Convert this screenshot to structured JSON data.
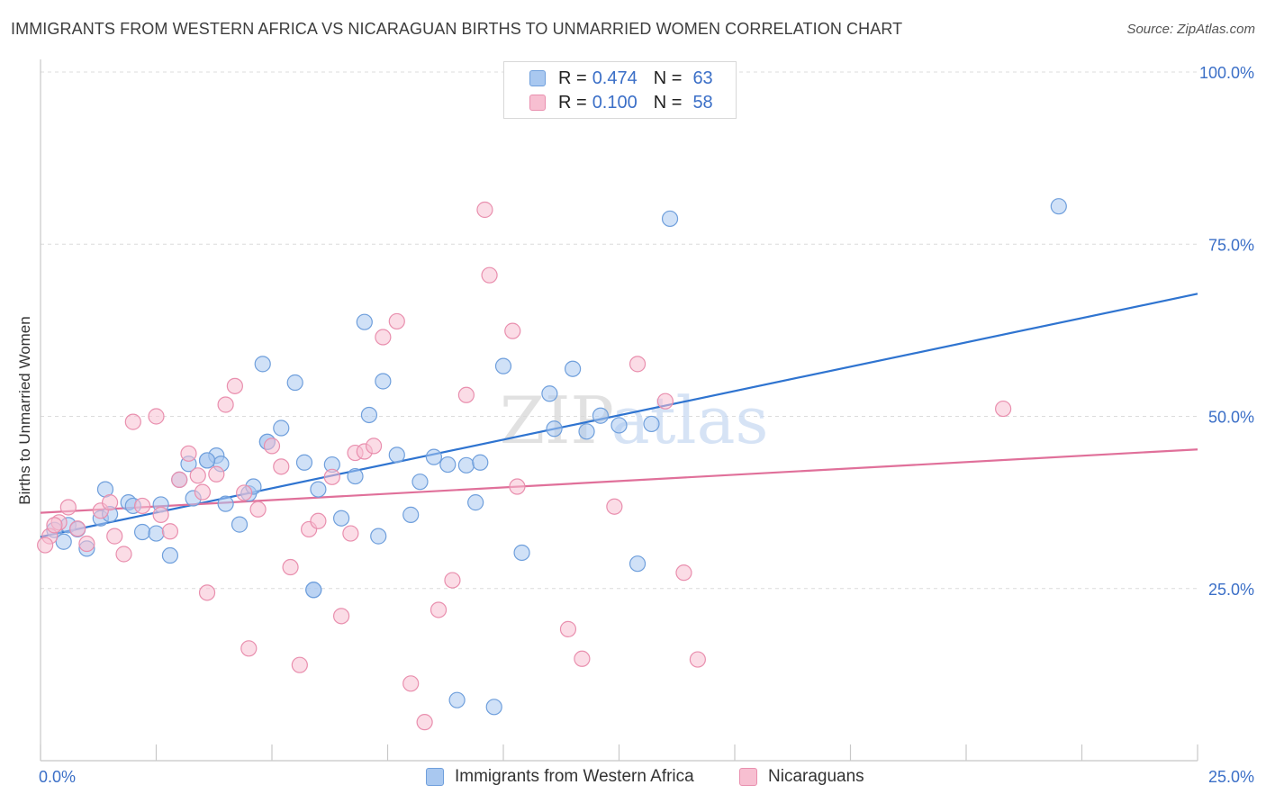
{
  "title": "IMMIGRANTS FROM WESTERN AFRICA VS NICARAGUAN BIRTHS TO UNMARRIED WOMEN CORRELATION CHART",
  "source": "Source: ZipAtlas.com",
  "watermark": "ZIPatlas",
  "legend": {
    "rows": [
      {
        "r_label": "R =",
        "r_value": "0.474",
        "n_label": "N =",
        "n_value": "63"
      },
      {
        "r_label": "R =",
        "r_value": "0.100",
        "n_label": "N =",
        "n_value": "58"
      }
    ]
  },
  "colors": {
    "blue_fill": "#a9c8f0",
    "blue_stroke": "#6f9fdc",
    "blue_line": "#2f74d0",
    "pink_fill": "#f7bfd1",
    "pink_stroke": "#e98fae",
    "pink_line": "#e0709a",
    "axis_text": "#3b6fc7",
    "grid": "#dcdcdc"
  },
  "chart_data": {
    "type": "scatter",
    "xlabel": "",
    "ylabel": "Births to Unmarried Women",
    "x_ticks": [
      "0.0%",
      "25.0%"
    ],
    "y_ticks": [
      "25.0%",
      "50.0%",
      "75.0%",
      "100.0%"
    ],
    "xlim": [
      0,
      25
    ],
    "ylim": [
      0,
      100
    ],
    "series": [
      {
        "name": "Immigrants from Western Africa",
        "color": "blue",
        "trend": {
          "x0": 0,
          "y0": 32.5,
          "x1": 25,
          "y1": 67.8
        },
        "points": [
          [
            0.3,
            33.5
          ],
          [
            0.5,
            31.8
          ],
          [
            0.6,
            34.2
          ],
          [
            0.8,
            33.6
          ],
          [
            1.0,
            30.8
          ],
          [
            1.3,
            35.2
          ],
          [
            1.5,
            35.8
          ],
          [
            1.4,
            39.4
          ],
          [
            1.9,
            37.5
          ],
          [
            2.0,
            37.0
          ],
          [
            2.2,
            33.2
          ],
          [
            2.5,
            33.0
          ],
          [
            2.6,
            37.2
          ],
          [
            2.8,
            29.8
          ],
          [
            3.0,
            40.8
          ],
          [
            3.2,
            43.1
          ],
          [
            3.3,
            38.1
          ],
          [
            3.6,
            43.6
          ],
          [
            3.8,
            44.3
          ],
          [
            3.9,
            43.1
          ],
          [
            4.0,
            37.3
          ],
          [
            4.3,
            34.3
          ],
          [
            4.5,
            38.8
          ],
          [
            4.6,
            39.8
          ],
          [
            4.8,
            57.6
          ],
          [
            4.9,
            46.3
          ],
          [
            5.2,
            48.3
          ],
          [
            5.5,
            54.9
          ],
          [
            5.7,
            43.3
          ],
          [
            5.9,
            24.8
          ],
          [
            6.0,
            39.4
          ],
          [
            6.3,
            43.0
          ],
          [
            6.5,
            35.2
          ],
          [
            6.8,
            41.3
          ],
          [
            7.0,
            63.7
          ],
          [
            7.1,
            50.2
          ],
          [
            7.3,
            32.6
          ],
          [
            7.4,
            55.1
          ],
          [
            7.7,
            44.4
          ],
          [
            8.0,
            35.7
          ],
          [
            8.2,
            40.5
          ],
          [
            8.5,
            44.1
          ],
          [
            8.8,
            43.0
          ],
          [
            9.0,
            8.8
          ],
          [
            9.2,
            42.9
          ],
          [
            9.4,
            37.5
          ],
          [
            9.5,
            43.3
          ],
          [
            9.8,
            7.8
          ],
          [
            10.0,
            57.3
          ],
          [
            10.4,
            30.2
          ],
          [
            11.0,
            53.3
          ],
          [
            11.1,
            48.2
          ],
          [
            11.5,
            56.9
          ],
          [
            11.8,
            47.8
          ],
          [
            12.1,
            50.1
          ],
          [
            12.5,
            48.7
          ],
          [
            12.9,
            28.6
          ],
          [
            13.2,
            48.9
          ],
          [
            13.6,
            78.7
          ],
          [
            22.0,
            80.5
          ],
          [
            4.9,
            46.3
          ],
          [
            5.9,
            24.8
          ],
          [
            3.6,
            43.6
          ]
        ]
      },
      {
        "name": "Nicaraguans",
        "color": "pink",
        "trend": {
          "x0": 0,
          "y0": 36.0,
          "x1": 25,
          "y1": 45.2
        },
        "points": [
          [
            0.2,
            32.6
          ],
          [
            0.4,
            34.6
          ],
          [
            0.6,
            36.8
          ],
          [
            0.8,
            33.7
          ],
          [
            1.0,
            31.5
          ],
          [
            1.3,
            36.3
          ],
          [
            1.5,
            37.5
          ],
          [
            1.6,
            32.6
          ],
          [
            1.8,
            30.0
          ],
          [
            2.0,
            49.2
          ],
          [
            2.2,
            37.0
          ],
          [
            2.5,
            50.0
          ],
          [
            2.6,
            35.7
          ],
          [
            2.8,
            33.3
          ],
          [
            3.0,
            40.8
          ],
          [
            3.2,
            44.6
          ],
          [
            3.4,
            41.4
          ],
          [
            3.5,
            39.0
          ],
          [
            3.6,
            24.4
          ],
          [
            3.8,
            41.6
          ],
          [
            4.0,
            51.7
          ],
          [
            4.2,
            54.4
          ],
          [
            4.4,
            38.9
          ],
          [
            4.5,
            16.3
          ],
          [
            4.7,
            36.5
          ],
          [
            5.0,
            45.7
          ],
          [
            5.2,
            42.7
          ],
          [
            5.4,
            28.1
          ],
          [
            5.6,
            13.9
          ],
          [
            5.8,
            33.6
          ],
          [
            6.0,
            34.8
          ],
          [
            6.3,
            41.2
          ],
          [
            6.5,
            21.0
          ],
          [
            6.7,
            33.0
          ],
          [
            6.8,
            44.7
          ],
          [
            7.0,
            44.9
          ],
          [
            7.2,
            45.7
          ],
          [
            7.4,
            61.5
          ],
          [
            7.7,
            63.8
          ],
          [
            8.0,
            11.2
          ],
          [
            8.3,
            5.6
          ],
          [
            8.6,
            21.9
          ],
          [
            8.9,
            26.2
          ],
          [
            9.2,
            53.1
          ],
          [
            9.6,
            80.0
          ],
          [
            9.7,
            70.5
          ],
          [
            10.2,
            62.4
          ],
          [
            10.3,
            39.8
          ],
          [
            11.4,
            19.1
          ],
          [
            11.7,
            14.8
          ],
          [
            12.4,
            36.9
          ],
          [
            12.9,
            57.6
          ],
          [
            13.5,
            52.2
          ],
          [
            13.9,
            27.3
          ],
          [
            14.2,
            14.7
          ],
          [
            20.8,
            51.1
          ],
          [
            0.1,
            31.3
          ],
          [
            0.3,
            34.2
          ]
        ]
      }
    ]
  },
  "bottom_legend": [
    {
      "label": "Immigrants from Western Africa"
    },
    {
      "label": "Nicaraguans"
    }
  ]
}
